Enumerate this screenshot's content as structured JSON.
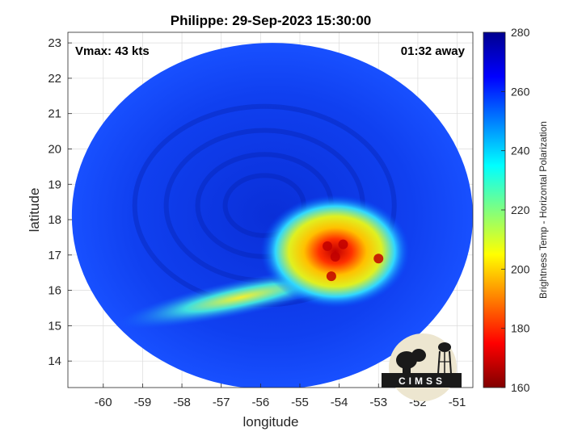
{
  "chart_data": {
    "type": "heatmap",
    "title": "Philippe: 29-Sep-2023 15:30:00",
    "xlabel": "longitude",
    "ylabel": "latitude",
    "xlim": [
      -60.9,
      -50.6
    ],
    "ylim": [
      13.25,
      23.3
    ],
    "grid": true,
    "x_ticks": [
      -60,
      -59,
      -58,
      -57,
      -56,
      -55,
      -54,
      -53,
      -52,
      -51
    ],
    "y_ticks": [
      14,
      15,
      16,
      17,
      18,
      19,
      20,
      21,
      22,
      23
    ],
    "annotations": {
      "vmax": "Vmax: 43 kts",
      "time_offset": "01:32 away"
    },
    "colorbar": {
      "label": "Brightness Temp - Horizontal Polarization",
      "min": 160,
      "max": 280,
      "ticks": [
        160,
        180,
        200,
        220,
        240,
        260,
        280
      ],
      "colormap": "jet"
    },
    "swath": {
      "center_lon": -55.7,
      "center_lat": 18.1,
      "radius_lon": 5.1,
      "radius_lat": 4.9
    },
    "background_temp": 262,
    "features": [
      {
        "name": "convective-core",
        "lon": -54.1,
        "lat": 17.1,
        "temp": 178
      },
      {
        "name": "rainband",
        "lon": -56.5,
        "lat": 15.8,
        "temp": 226
      }
    ]
  },
  "logo": {
    "text": "CIMSS"
  }
}
